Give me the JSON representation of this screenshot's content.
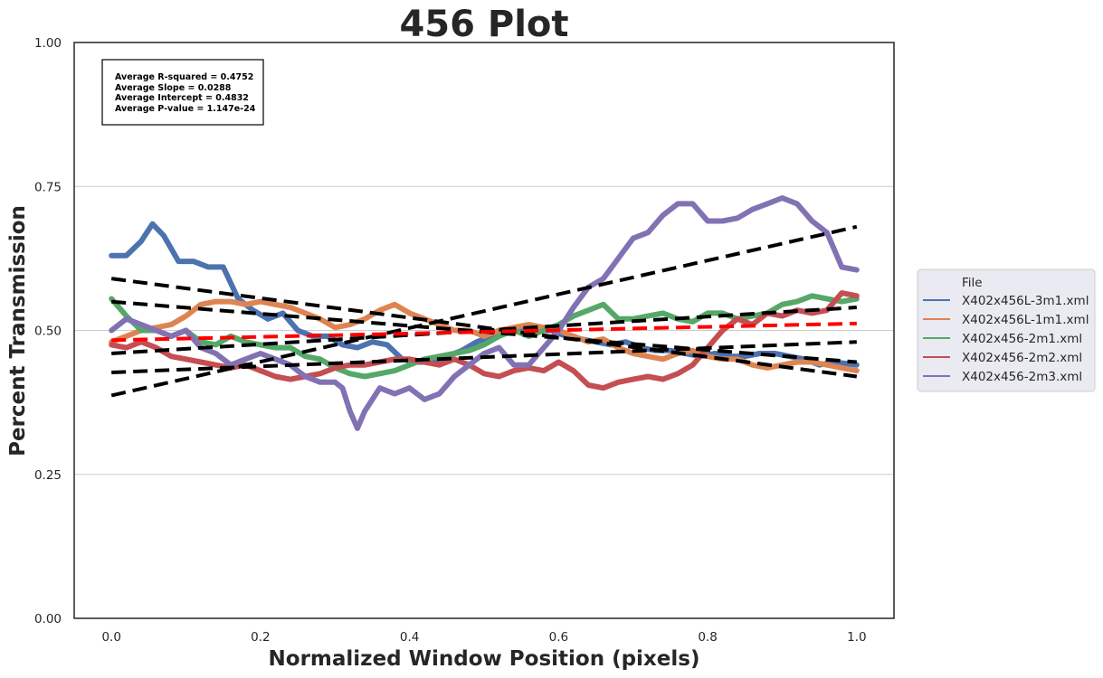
{
  "chart_data": {
    "type": "line",
    "title": "456 Plot",
    "xlabel": "Normalized Window Position (pixels)",
    "ylabel": "Percent Transmission",
    "xlim": [
      -0.05,
      1.05
    ],
    "ylim": [
      0.0,
      1.0
    ],
    "xticks": [
      0.0,
      0.2,
      0.4,
      0.6,
      0.8,
      1.0
    ],
    "xtick_labels": [
      "0.0",
      "0.2",
      "0.4",
      "0.6",
      "0.8",
      "1.0"
    ],
    "yticks": [
      0.0,
      0.25,
      0.5,
      0.75,
      1.0
    ],
    "ytick_labels": [
      "0.00",
      "0.25",
      "0.50",
      "0.75",
      "1.00"
    ],
    "grid": "horizontal",
    "legend": {
      "title": "File",
      "placement": "right, outside plot"
    },
    "stats_box": [
      "Average R-squared = 0.4752",
      "Average Slope = 0.0288",
      "Average Intercept = 0.4832",
      "Average P-value = 1.147e-24"
    ],
    "series": [
      {
        "name": "X402x456L-3m1.xml",
        "color": "#4c72b0",
        "x": [
          0.0,
          0.02,
          0.04,
          0.055,
          0.07,
          0.09,
          0.11,
          0.13,
          0.15,
          0.17,
          0.19,
          0.21,
          0.23,
          0.25,
          0.27,
          0.29,
          0.31,
          0.33,
          0.35,
          0.37,
          0.39,
          0.41,
          0.43,
          0.45,
          0.47,
          0.49,
          0.51,
          0.53,
          0.55,
          0.57,
          0.59,
          0.61,
          0.63,
          0.65,
          0.67,
          0.69,
          0.71,
          0.73,
          0.75,
          0.77,
          0.79,
          0.81,
          0.83,
          0.85,
          0.87,
          0.89,
          0.91,
          0.93,
          0.95,
          0.97,
          1.0
        ],
        "values": [
          0.63,
          0.63,
          0.655,
          0.685,
          0.665,
          0.62,
          0.62,
          0.61,
          0.61,
          0.555,
          0.535,
          0.52,
          0.53,
          0.5,
          0.49,
          0.49,
          0.475,
          0.47,
          0.48,
          0.475,
          0.45,
          0.445,
          0.445,
          0.455,
          0.465,
          0.48,
          0.49,
          0.495,
          0.505,
          0.5,
          0.5,
          0.49,
          0.485,
          0.48,
          0.475,
          0.48,
          0.47,
          0.465,
          0.465,
          0.46,
          0.455,
          0.46,
          0.455,
          0.455,
          0.46,
          0.46,
          0.455,
          0.45,
          0.44,
          0.445,
          0.44
        ]
      },
      {
        "name": "X402x456L-1m1.xml",
        "color": "#dd8452",
        "x": [
          0.0,
          0.02,
          0.04,
          0.06,
          0.08,
          0.1,
          0.12,
          0.14,
          0.16,
          0.18,
          0.2,
          0.22,
          0.24,
          0.26,
          0.28,
          0.3,
          0.32,
          0.34,
          0.36,
          0.38,
          0.4,
          0.42,
          0.44,
          0.46,
          0.48,
          0.5,
          0.52,
          0.54,
          0.56,
          0.58,
          0.6,
          0.62,
          0.64,
          0.66,
          0.68,
          0.7,
          0.72,
          0.74,
          0.76,
          0.78,
          0.8,
          0.82,
          0.84,
          0.86,
          0.88,
          0.9,
          0.92,
          0.94,
          0.96,
          0.98,
          1.0
        ],
        "values": [
          0.48,
          0.49,
          0.5,
          0.505,
          0.51,
          0.525,
          0.545,
          0.55,
          0.55,
          0.545,
          0.55,
          0.545,
          0.54,
          0.53,
          0.52,
          0.505,
          0.51,
          0.52,
          0.535,
          0.545,
          0.53,
          0.52,
          0.51,
          0.5,
          0.5,
          0.49,
          0.5,
          0.505,
          0.51,
          0.505,
          0.5,
          0.49,
          0.48,
          0.485,
          0.47,
          0.46,
          0.455,
          0.45,
          0.46,
          0.465,
          0.455,
          0.45,
          0.45,
          0.44,
          0.435,
          0.44,
          0.445,
          0.445,
          0.44,
          0.435,
          0.43
        ]
      },
      {
        "name": "X402x456-2m1.xml",
        "color": "#55a868",
        "x": [
          0.0,
          0.02,
          0.04,
          0.06,
          0.08,
          0.1,
          0.12,
          0.14,
          0.16,
          0.18,
          0.2,
          0.22,
          0.24,
          0.26,
          0.28,
          0.3,
          0.32,
          0.34,
          0.36,
          0.38,
          0.4,
          0.42,
          0.44,
          0.46,
          0.48,
          0.5,
          0.52,
          0.54,
          0.56,
          0.58,
          0.6,
          0.62,
          0.64,
          0.66,
          0.68,
          0.7,
          0.72,
          0.74,
          0.76,
          0.78,
          0.8,
          0.82,
          0.84,
          0.86,
          0.88,
          0.9,
          0.92,
          0.94,
          0.96,
          0.98,
          1.0
        ],
        "values": [
          0.555,
          0.525,
          0.5,
          0.5,
          0.49,
          0.5,
          0.48,
          0.475,
          0.49,
          0.48,
          0.475,
          0.47,
          0.47,
          0.455,
          0.45,
          0.435,
          0.425,
          0.42,
          0.425,
          0.43,
          0.44,
          0.45,
          0.455,
          0.46,
          0.465,
          0.475,
          0.49,
          0.5,
          0.49,
          0.5,
          0.51,
          0.525,
          0.535,
          0.545,
          0.52,
          0.52,
          0.525,
          0.53,
          0.52,
          0.515,
          0.53,
          0.53,
          0.52,
          0.525,
          0.53,
          0.545,
          0.55,
          0.56,
          0.555,
          0.55,
          0.555
        ]
      },
      {
        "name": "X402x456-2m2.xml",
        "color": "#c44e52",
        "x": [
          0.0,
          0.02,
          0.04,
          0.06,
          0.08,
          0.1,
          0.12,
          0.14,
          0.16,
          0.18,
          0.2,
          0.22,
          0.24,
          0.26,
          0.28,
          0.3,
          0.32,
          0.34,
          0.36,
          0.38,
          0.4,
          0.42,
          0.44,
          0.46,
          0.48,
          0.5,
          0.52,
          0.54,
          0.56,
          0.58,
          0.6,
          0.62,
          0.64,
          0.66,
          0.68,
          0.7,
          0.72,
          0.74,
          0.76,
          0.78,
          0.8,
          0.82,
          0.84,
          0.86,
          0.88,
          0.9,
          0.92,
          0.94,
          0.96,
          0.98,
          1.0
        ],
        "values": [
          0.475,
          0.47,
          0.48,
          0.47,
          0.455,
          0.45,
          0.445,
          0.44,
          0.435,
          0.44,
          0.43,
          0.42,
          0.415,
          0.42,
          0.425,
          0.435,
          0.44,
          0.44,
          0.445,
          0.45,
          0.45,
          0.445,
          0.44,
          0.45,
          0.44,
          0.425,
          0.42,
          0.43,
          0.435,
          0.43,
          0.445,
          0.43,
          0.405,
          0.4,
          0.41,
          0.415,
          0.42,
          0.415,
          0.425,
          0.44,
          0.47,
          0.5,
          0.52,
          0.51,
          0.53,
          0.525,
          0.535,
          0.53,
          0.535,
          0.565,
          0.56
        ]
      },
      {
        "name": "X402x456-2m3.xml",
        "color": "#8172b3",
        "x": [
          0.0,
          0.02,
          0.04,
          0.06,
          0.08,
          0.1,
          0.12,
          0.14,
          0.16,
          0.18,
          0.2,
          0.22,
          0.24,
          0.26,
          0.28,
          0.3,
          0.31,
          0.32,
          0.33,
          0.34,
          0.36,
          0.38,
          0.4,
          0.42,
          0.44,
          0.46,
          0.48,
          0.5,
          0.52,
          0.54,
          0.56,
          0.58,
          0.6,
          0.62,
          0.64,
          0.66,
          0.68,
          0.7,
          0.72,
          0.74,
          0.76,
          0.78,
          0.8,
          0.82,
          0.84,
          0.86,
          0.88,
          0.9,
          0.92,
          0.94,
          0.96,
          0.98,
          1.0
        ],
        "values": [
          0.5,
          0.52,
          0.51,
          0.5,
          0.49,
          0.5,
          0.47,
          0.46,
          0.44,
          0.45,
          0.46,
          0.45,
          0.44,
          0.42,
          0.41,
          0.41,
          0.4,
          0.36,
          0.33,
          0.36,
          0.4,
          0.39,
          0.4,
          0.38,
          0.39,
          0.42,
          0.44,
          0.46,
          0.47,
          0.44,
          0.44,
          0.47,
          0.5,
          0.54,
          0.575,
          0.59,
          0.625,
          0.66,
          0.67,
          0.7,
          0.72,
          0.72,
          0.69,
          0.69,
          0.695,
          0.71,
          0.72,
          0.73,
          0.72,
          0.69,
          0.67,
          0.61,
          0.605
        ]
      }
    ],
    "fit_lines": [
      {
        "color": "#000000",
        "style": "dashed",
        "x": [
          0.0,
          1.0
        ],
        "values": [
          0.59,
          0.42
        ]
      },
      {
        "color": "#000000",
        "style": "dashed",
        "x": [
          0.0,
          1.0
        ],
        "values": [
          0.55,
          0.445
        ]
      },
      {
        "color": "#000000",
        "style": "dashed",
        "x": [
          0.0,
          1.0
        ],
        "values": [
          0.46,
          0.54
        ]
      },
      {
        "color": "#000000",
        "style": "dashed",
        "x": [
          0.0,
          1.0
        ],
        "values": [
          0.427,
          0.48
        ]
      },
      {
        "color": "#000000",
        "style": "dashed",
        "x": [
          0.0,
          1.0
        ],
        "values": [
          0.387,
          0.68
        ]
      },
      {
        "color": "#ff0000",
        "style": "dashed",
        "x": [
          0.0,
          1.0
        ],
        "values": [
          0.483,
          0.512
        ]
      }
    ]
  }
}
